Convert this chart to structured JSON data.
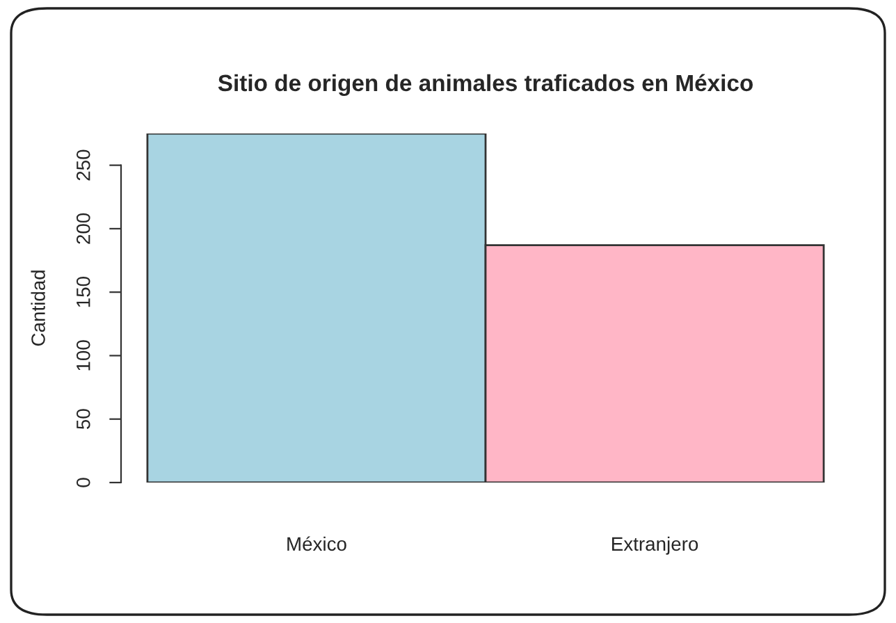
{
  "chart_data": {
    "type": "bar",
    "title": "Sitio de origen de animales traficados en México",
    "ylabel": "Cantidad",
    "categories": [
      "México",
      "Extranjero"
    ],
    "values": [
      275,
      187
    ],
    "colors": [
      "#a8d4e2",
      "#ffb6c6"
    ],
    "ylim": [
      0,
      275
    ],
    "yticks": [
      0,
      50,
      100,
      150,
      200,
      250
    ],
    "grid": false,
    "legend": false
  }
}
